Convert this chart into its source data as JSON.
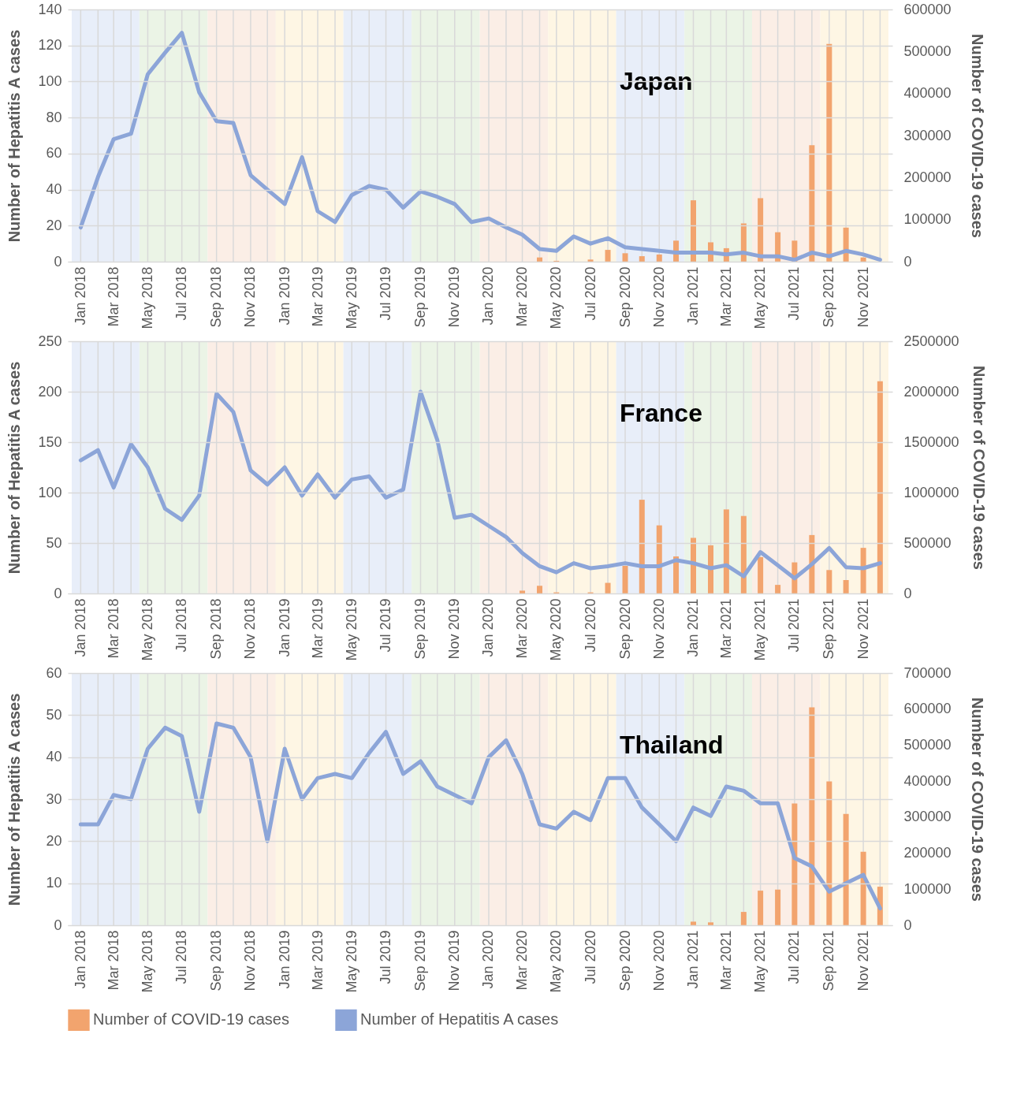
{
  "chart_data": [
    {
      "type": "bar",
      "title": "Japan",
      "ylabel": "Number of Hepatitis A cases",
      "y2label": "Number of COVID-19 cases",
      "x": [
        "2018-01",
        "2018-02",
        "2018-03",
        "2018-04",
        "2018-05",
        "2018-06",
        "2018-07",
        "2018-08",
        "2018-09",
        "2018-10",
        "2018-11",
        "2018-12",
        "2019-01",
        "2019-02",
        "2019-03",
        "2019-04",
        "2019-05",
        "2019-06",
        "2019-07",
        "2019-08",
        "2019-09",
        "2019-10",
        "2019-11",
        "2019-12",
        "2020-01",
        "2020-02",
        "2020-03",
        "2020-04",
        "2020-05",
        "2020-06",
        "2020-07",
        "2020-08",
        "2020-09",
        "2020-10",
        "2020-11",
        "2020-12",
        "2021-01",
        "2021-02",
        "2021-03",
        "2021-04",
        "2021-05",
        "2021-06",
        "2021-07",
        "2021-08",
        "2021-09",
        "2021-10",
        "2021-11",
        "2021-12"
      ],
      "series": [
        {
          "axis": "y2",
          "color": "#f2a46e",
          "values": [
            null,
            null,
            null,
            null,
            null,
            null,
            null,
            null,
            null,
            null,
            null,
            null,
            null,
            null,
            null,
            null,
            null,
            null,
            null,
            null,
            null,
            null,
            null,
            null,
            null,
            null,
            null,
            10000,
            2000,
            null,
            5000,
            28000,
            20000,
            13000,
            17000,
            50000,
            146000,
            46000,
            32000,
            91000,
            151000,
            70000,
            50000,
            277000,
            518000,
            81000,
            10000,
            null
          ]
        },
        {
          "type": "line",
          "color": "#8ca5d8",
          "values": [
            19,
            47,
            68,
            71,
            104,
            116,
            127,
            94,
            78,
            77,
            48,
            40,
            32,
            58,
            28,
            22,
            37,
            42,
            40,
            30,
            39,
            36,
            32,
            22,
            24,
            19,
            15,
            7,
            6,
            14,
            10,
            13,
            8,
            7,
            6,
            5,
            5,
            5,
            4,
            5,
            3,
            3,
            1,
            5,
            3,
            6,
            4,
            1
          ]
        }
      ],
      "xlim": [
        "2017-12-16",
        "2021-12-16"
      ],
      "xticks": [
        {
          "value": "2018-01",
          "label": "Jan 2018"
        },
        {
          "value": "2018-02",
          "label": null
        },
        {
          "value": "2018-03",
          "label": "Mar 2018"
        },
        {
          "value": "2018-04",
          "label": null
        },
        {
          "value": "2018-05",
          "label": "May 2018"
        },
        {
          "value": "2018-06",
          "label": null
        },
        {
          "value": "2018-07",
          "label": "Jul 2018"
        },
        {
          "value": "2018-08",
          "label": null
        },
        {
          "value": "2018-09",
          "label": "Sep 2018"
        },
        {
          "value": "2018-10",
          "label": null
        },
        {
          "value": "2018-11",
          "label": "Nov 2018"
        },
        {
          "value": "2018-12",
          "label": null
        },
        {
          "value": "2019-01",
          "label": "Jan 2019"
        },
        {
          "value": "2019-02",
          "label": null
        },
        {
          "value": "2019-03",
          "label": "Mar 2019"
        },
        {
          "value": "2019-04",
          "label": null
        },
        {
          "value": "2019-05",
          "label": "May 2019"
        },
        {
          "value": "2019-06",
          "label": null
        },
        {
          "value": "2019-07",
          "label": "Jul 2019"
        },
        {
          "value": "2019-08",
          "label": null
        },
        {
          "value": "2019-09",
          "label": "Sep 2019"
        },
        {
          "value": "2019-10",
          "label": null
        },
        {
          "value": "2019-11",
          "label": "Nov 2019"
        },
        {
          "value": "2019-12",
          "label": null
        },
        {
          "value": "2020-01",
          "label": "Jan 2020"
        },
        {
          "value": "2020-02",
          "label": null
        },
        {
          "value": "2020-03",
          "label": "Mar 2020"
        },
        {
          "value": "2020-04",
          "label": null
        },
        {
          "value": "2020-05",
          "label": "May 2020"
        },
        {
          "value": "2020-06",
          "label": null
        },
        {
          "value": "2020-07",
          "label": "Jul 2020"
        },
        {
          "value": "2020-08",
          "label": null
        },
        {
          "value": "2020-09",
          "label": "Sep 2020"
        },
        {
          "value": "2020-10",
          "label": null
        },
        {
          "value": "2020-11",
          "label": "Nov 2020"
        },
        {
          "value": "2020-12",
          "label": null
        },
        {
          "value": "2021-01",
          "label": "Jan 2021"
        },
        {
          "value": "2021-02",
          "label": null
        },
        {
          "value": "2021-03",
          "label": "Mar 2021"
        },
        {
          "value": "2021-04",
          "label": null
        },
        {
          "value": "2021-05",
          "label": "May 2021"
        },
        {
          "value": "2021-06",
          "label": null
        },
        {
          "value": "2021-07",
          "label": "Jul 2021"
        },
        {
          "value": "2021-08",
          "label": null
        },
        {
          "value": "2021-09",
          "label": "Sep 2021"
        },
        {
          "value": "2021-10",
          "label": null
        },
        {
          "value": "2021-11",
          "label": "Nov 2021"
        },
        {
          "value": "2021-12",
          "label": null
        }
      ],
      "ylim": [
        0,
        140
      ],
      "yticks": [
        0,
        20,
        40,
        60,
        80,
        100,
        120,
        140
      ],
      "y2lim": [
        0,
        600000
      ],
      "y2ticks": [
        0,
        100000,
        200000,
        300000,
        400000,
        500000,
        600000
      ],
      "grid": true,
      "bands": [
        {
          "axis": "x",
          "from": "2017-12-16",
          "to": "2018-04-16",
          "color": "#e8eef9"
        },
        {
          "axis": "x",
          "from": "2018-04-16",
          "to": "2018-08-16",
          "color": "#ebf4e6"
        },
        {
          "axis": "x",
          "from": "2018-08-16",
          "to": "2018-12-16",
          "color": "#fbeee6"
        },
        {
          "axis": "x",
          "from": "2018-12-16",
          "to": "2019-04-16",
          "color": "#fef6e4"
        },
        {
          "axis": "x",
          "from": "2019-04-16",
          "to": "2019-08-16",
          "color": "#e8eef9"
        },
        {
          "axis": "x",
          "from": "2019-08-16",
          "to": "2019-12-16",
          "color": "#ebf4e6"
        },
        {
          "axis": "x",
          "from": "2019-12-16",
          "to": "2020-04-16",
          "color": "#fbeee6"
        },
        {
          "axis": "x",
          "from": "2020-04-16",
          "to": "2020-08-16",
          "color": "#fef6e4"
        },
        {
          "axis": "x",
          "from": "2020-08-16",
          "to": "2020-12-16",
          "color": "#e8eef9"
        },
        {
          "axis": "x",
          "from": "2020-12-16",
          "to": "2021-04-16",
          "color": "#ebf4e6"
        },
        {
          "axis": "x",
          "from": "2021-04-16",
          "to": "2021-08-16",
          "color": "#fbeee6"
        },
        {
          "axis": "x",
          "from": "2021-08-16",
          "to": "2021-12-16",
          "color": "#fef6e4"
        }
      ]
    },
    {
      "type": "bar",
      "title": "France",
      "ylabel": "Number of Hepatitis A cases",
      "y2label": "Number of COVID-19 cases",
      "x": [
        "2018-01",
        "2018-02",
        "2018-03",
        "2018-04",
        "2018-05",
        "2018-06",
        "2018-07",
        "2018-08",
        "2018-09",
        "2018-10",
        "2018-11",
        "2018-12",
        "2019-01",
        "2019-02",
        "2019-03",
        "2019-04",
        "2019-05",
        "2019-06",
        "2019-07",
        "2019-08",
        "2019-09",
        "2019-10",
        "2019-11",
        "2019-12",
        "2020-01",
        "2020-02",
        "2020-03",
        "2020-04",
        "2020-05",
        "2020-06",
        "2020-07",
        "2020-08",
        "2020-09",
        "2020-10",
        "2020-11",
        "2020-12",
        "2021-01",
        "2021-02",
        "2021-03",
        "2021-04",
        "2021-05",
        "2021-06",
        "2021-07",
        "2021-08",
        "2021-09",
        "2021-10",
        "2021-11",
        "2021-12"
      ],
      "series": [
        {
          "axis": "y2",
          "color": "#f2a46e",
          "values": [
            null,
            null,
            null,
            null,
            null,
            null,
            null,
            null,
            null,
            null,
            null,
            null,
            null,
            null,
            null,
            null,
            null,
            null,
            null,
            null,
            null,
            null,
            null,
            null,
            null,
            null,
            28000,
            76000,
            11000,
            null,
            11000,
            105000,
            274000,
            929000,
            675000,
            367000,
            551000,
            477000,
            833000,
            768000,
            360000,
            85000,
            308000,
            579000,
            232000,
            133000,
            452000,
            2104000
          ]
        },
        {
          "type": "line",
          "color": "#8ca5d8",
          "values": [
            132,
            142,
            105,
            148,
            125,
            84,
            73,
            97,
            198,
            180,
            122,
            108,
            125,
            97,
            118,
            95,
            113,
            116,
            95,
            103,
            200,
            152,
            75,
            78,
            67,
            56,
            40,
            27,
            21,
            30,
            25,
            27,
            30,
            27,
            27,
            33,
            30,
            25,
            28,
            17,
            41,
            28,
            15,
            29,
            45,
            26,
            25,
            30
          ]
        }
      ],
      "xlim": [
        "2017-12-16",
        "2021-12-16"
      ],
      "xticks": [
        {
          "value": "2018-01",
          "label": "Jan 2018"
        },
        {
          "value": "2018-02",
          "label": null
        },
        {
          "value": "2018-03",
          "label": "Mar 2018"
        },
        {
          "value": "2018-04",
          "label": null
        },
        {
          "value": "2018-05",
          "label": "May 2018"
        },
        {
          "value": "2018-06",
          "label": null
        },
        {
          "value": "2018-07",
          "label": "Jul 2018"
        },
        {
          "value": "2018-08",
          "label": null
        },
        {
          "value": "2018-09",
          "label": "Sep 2018"
        },
        {
          "value": "2018-10",
          "label": null
        },
        {
          "value": "2018-11",
          "label": "Nov 2018"
        },
        {
          "value": "2018-12",
          "label": null
        },
        {
          "value": "2019-01",
          "label": "Jan 2019"
        },
        {
          "value": "2019-02",
          "label": null
        },
        {
          "value": "2019-03",
          "label": "Mar 2019"
        },
        {
          "value": "2019-04",
          "label": null
        },
        {
          "value": "2019-05",
          "label": "May 2019"
        },
        {
          "value": "2019-06",
          "label": null
        },
        {
          "value": "2019-07",
          "label": "Jul 2019"
        },
        {
          "value": "2019-08",
          "label": null
        },
        {
          "value": "2019-09",
          "label": "Sep 2019"
        },
        {
          "value": "2019-10",
          "label": null
        },
        {
          "value": "2019-11",
          "label": "Nov 2019"
        },
        {
          "value": "2019-12",
          "label": null
        },
        {
          "value": "2020-01",
          "label": "Jan 2020"
        },
        {
          "value": "2020-02",
          "label": null
        },
        {
          "value": "2020-03",
          "label": "Mar 2020"
        },
        {
          "value": "2020-04",
          "label": null
        },
        {
          "value": "2020-05",
          "label": "May 2020"
        },
        {
          "value": "2020-06",
          "label": null
        },
        {
          "value": "2020-07",
          "label": "Jul 2020"
        },
        {
          "value": "2020-08",
          "label": null
        },
        {
          "value": "2020-09",
          "label": "Sep 2020"
        },
        {
          "value": "2020-10",
          "label": null
        },
        {
          "value": "2020-11",
          "label": "Nov 2020"
        },
        {
          "value": "2020-12",
          "label": null
        },
        {
          "value": "2021-01",
          "label": "Jan 2021"
        },
        {
          "value": "2021-02",
          "label": null
        },
        {
          "value": "2021-03",
          "label": "Mar 2021"
        },
        {
          "value": "2021-04",
          "label": null
        },
        {
          "value": "2021-05",
          "label": "May 2021"
        },
        {
          "value": "2021-06",
          "label": null
        },
        {
          "value": "2021-07",
          "label": "Jul 2021"
        },
        {
          "value": "2021-08",
          "label": null
        },
        {
          "value": "2021-09",
          "label": "Sep 2021"
        },
        {
          "value": "2021-10",
          "label": null
        },
        {
          "value": "2021-11",
          "label": "Nov 2021"
        },
        {
          "value": "2021-12",
          "label": null
        }
      ],
      "ylim": [
        0,
        250
      ],
      "yticks": [
        0,
        50,
        100,
        150,
        200,
        250
      ],
      "y2lim": [
        0,
        2500000
      ],
      "y2ticks": [
        0,
        500000,
        1000000,
        1500000,
        2000000,
        2500000
      ],
      "grid": true,
      "bands": [
        {
          "axis": "x",
          "from": "2017-12-16",
          "to": "2018-04-16",
          "color": "#e8eef9"
        },
        {
          "axis": "x",
          "from": "2018-04-16",
          "to": "2018-08-16",
          "color": "#ebf4e6"
        },
        {
          "axis": "x",
          "from": "2018-08-16",
          "to": "2018-12-16",
          "color": "#fbeee6"
        },
        {
          "axis": "x",
          "from": "2018-12-16",
          "to": "2019-04-16",
          "color": "#fef6e4"
        },
        {
          "axis": "x",
          "from": "2019-04-16",
          "to": "2019-08-16",
          "color": "#e8eef9"
        },
        {
          "axis": "x",
          "from": "2019-08-16",
          "to": "2019-12-16",
          "color": "#ebf4e6"
        },
        {
          "axis": "x",
          "from": "2019-12-16",
          "to": "2020-04-16",
          "color": "#fbeee6"
        },
        {
          "axis": "x",
          "from": "2020-04-16",
          "to": "2020-08-16",
          "color": "#fef6e4"
        },
        {
          "axis": "x",
          "from": "2020-08-16",
          "to": "2020-12-16",
          "color": "#e8eef9"
        },
        {
          "axis": "x",
          "from": "2020-12-16",
          "to": "2021-04-16",
          "color": "#ebf4e6"
        },
        {
          "axis": "x",
          "from": "2021-04-16",
          "to": "2021-08-16",
          "color": "#fbeee6"
        },
        {
          "axis": "x",
          "from": "2021-08-16",
          "to": "2021-12-16",
          "color": "#fef6e4"
        }
      ]
    },
    {
      "type": "bar",
      "title": "Thailand",
      "ylabel": "Number of Hepatitis A cases",
      "y2label": "Number of COVID-19 cases",
      "legend": "bottom",
      "x": [
        "2018-01",
        "2018-02",
        "2018-03",
        "2018-04",
        "2018-05",
        "2018-06",
        "2018-07",
        "2018-08",
        "2018-09",
        "2018-10",
        "2018-11",
        "2018-12",
        "2019-01",
        "2019-02",
        "2019-03",
        "2019-04",
        "2019-05",
        "2019-06",
        "2019-07",
        "2019-08",
        "2019-09",
        "2019-10",
        "2019-11",
        "2019-12",
        "2020-01",
        "2020-02",
        "2020-03",
        "2020-04",
        "2020-05",
        "2020-06",
        "2020-07",
        "2020-08",
        "2020-09",
        "2020-10",
        "2020-11",
        "2020-12",
        "2021-01",
        "2021-02",
        "2021-03",
        "2021-04",
        "2021-05",
        "2021-06",
        "2021-07",
        "2021-08",
        "2021-09",
        "2021-10",
        "2021-11",
        "2021-12"
      ],
      "series": [
        {
          "name": "Number of COVID-19 cases",
          "axis": "y2",
          "color": "#f2a46e",
          "values": [
            null,
            null,
            null,
            null,
            null,
            null,
            null,
            null,
            null,
            null,
            null,
            null,
            null,
            null,
            null,
            null,
            null,
            null,
            null,
            null,
            null,
            null,
            null,
            null,
            null,
            null,
            null,
            null,
            null,
            null,
            null,
            null,
            null,
            null,
            null,
            null,
            10000,
            8000,
            null,
            37000,
            96000,
            99000,
            338000,
            605000,
            399000,
            309000,
            204000,
            107000
          ]
        },
        {
          "name": "Number of Hepatitis A cases",
          "type": "line",
          "color": "#8ca5d8",
          "values": [
            24,
            24,
            31,
            30,
            42,
            47,
            45,
            27,
            48,
            47,
            40,
            20,
            42,
            30,
            35,
            36,
            35,
            41,
            46,
            36,
            39,
            33,
            31,
            29,
            40,
            44,
            36,
            24,
            23,
            27,
            25,
            35,
            35,
            28,
            24,
            20,
            28,
            26,
            33,
            32,
            29,
            29,
            16,
            14,
            8,
            10,
            12,
            4
          ]
        }
      ],
      "xlim": [
        "2017-12-16",
        "2021-12-16"
      ],
      "xticks": [
        {
          "value": "2018-01",
          "label": "Jan 2018"
        },
        {
          "value": "2018-02",
          "label": null
        },
        {
          "value": "2018-03",
          "label": "Mar 2018"
        },
        {
          "value": "2018-04",
          "label": null
        },
        {
          "value": "2018-05",
          "label": "May 2018"
        },
        {
          "value": "2018-06",
          "label": null
        },
        {
          "value": "2018-07",
          "label": "Jul 2018"
        },
        {
          "value": "2018-08",
          "label": null
        },
        {
          "value": "2018-09",
          "label": "Sep 2018"
        },
        {
          "value": "2018-10",
          "label": null
        },
        {
          "value": "2018-11",
          "label": "Nov 2018"
        },
        {
          "value": "2018-12",
          "label": null
        },
        {
          "value": "2019-01",
          "label": "Jan 2019"
        },
        {
          "value": "2019-02",
          "label": null
        },
        {
          "value": "2019-03",
          "label": "Mar 2019"
        },
        {
          "value": "2019-04",
          "label": null
        },
        {
          "value": "2019-05",
          "label": "May 2019"
        },
        {
          "value": "2019-06",
          "label": null
        },
        {
          "value": "2019-07",
          "label": "Jul 2019"
        },
        {
          "value": "2019-08",
          "label": null
        },
        {
          "value": "2019-09",
          "label": "Sep 2019"
        },
        {
          "value": "2019-10",
          "label": null
        },
        {
          "value": "2019-11",
          "label": "Nov 2019"
        },
        {
          "value": "2019-12",
          "label": null
        },
        {
          "value": "2020-01",
          "label": "Jan 2020"
        },
        {
          "value": "2020-02",
          "label": null
        },
        {
          "value": "2020-03",
          "label": "Mar 2020"
        },
        {
          "value": "2020-04",
          "label": null
        },
        {
          "value": "2020-05",
          "label": "May 2020"
        },
        {
          "value": "2020-06",
          "label": null
        },
        {
          "value": "2020-07",
          "label": "Jul 2020"
        },
        {
          "value": "2020-08",
          "label": null
        },
        {
          "value": "2020-09",
          "label": "Sep 2020"
        },
        {
          "value": "2020-10",
          "label": null
        },
        {
          "value": "2020-11",
          "label": "Nov 2020"
        },
        {
          "value": "2020-12",
          "label": null
        },
        {
          "value": "2021-01",
          "label": "Jan 2021"
        },
        {
          "value": "2021-02",
          "label": null
        },
        {
          "value": "2021-03",
          "label": "Mar 2021"
        },
        {
          "value": "2021-04",
          "label": null
        },
        {
          "value": "2021-05",
          "label": "May 2021"
        },
        {
          "value": "2021-06",
          "label": null
        },
        {
          "value": "2021-07",
          "label": "Jul 2021"
        },
        {
          "value": "2021-08",
          "label": null
        },
        {
          "value": "2021-09",
          "label": "Sep 2021"
        },
        {
          "value": "2021-10",
          "label": null
        },
        {
          "value": "2021-11",
          "label": "Nov 2021"
        },
        {
          "value": "2021-12",
          "label": null
        }
      ],
      "ylim": [
        0,
        60
      ],
      "yticks": [
        0,
        10,
        20,
        30,
        40,
        50,
        60
      ],
      "y2lim": [
        0,
        700000
      ],
      "y2ticks": [
        0,
        100000,
        200000,
        300000,
        400000,
        500000,
        600000,
        700000
      ],
      "grid": true,
      "bands": [
        {
          "axis": "x",
          "from": "2017-12-16",
          "to": "2018-04-16",
          "color": "#e8eef9"
        },
        {
          "axis": "x",
          "from": "2018-04-16",
          "to": "2018-08-16",
          "color": "#ebf4e6"
        },
        {
          "axis": "x",
          "from": "2018-08-16",
          "to": "2018-12-16",
          "color": "#fbeee6"
        },
        {
          "axis": "x",
          "from": "2018-12-16",
          "to": "2019-04-16",
          "color": "#fef6e4"
        },
        {
          "axis": "x",
          "from": "2019-04-16",
          "to": "2019-08-16",
          "color": "#e8eef9"
        },
        {
          "axis": "x",
          "from": "2019-08-16",
          "to": "2019-12-16",
          "color": "#ebf4e6"
        },
        {
          "axis": "x",
          "from": "2019-12-16",
          "to": "2020-04-16",
          "color": "#fbeee6"
        },
        {
          "axis": "x",
          "from": "2020-04-16",
          "to": "2020-08-16",
          "color": "#fef6e4"
        },
        {
          "axis": "x",
          "from": "2020-08-16",
          "to": "2020-12-16",
          "color": "#e8eef9"
        },
        {
          "axis": "x",
          "from": "2020-12-16",
          "to": "2021-04-16",
          "color": "#ebf4e6"
        },
        {
          "axis": "x",
          "from": "2021-04-16",
          "to": "2021-08-16",
          "color": "#fbeee6"
        },
        {
          "axis": "x",
          "from": "2021-08-16",
          "to": "2021-12-16",
          "color": "#fef6e4"
        }
      ]
    }
  ]
}
